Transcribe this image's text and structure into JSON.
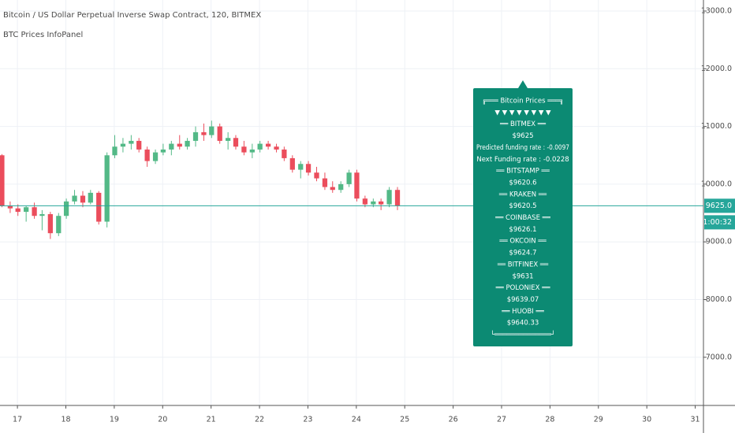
{
  "chart_data": {
    "type": "candlestick",
    "title": "Bitcoin / US Dollar Perpetual Inverse Swap Contract, 120, BITMEX",
    "subtitle": "BTC Prices InfoPanel",
    "up_color": "#53b987",
    "down_color": "#eb4d5c",
    "grid": true,
    "xlim": [
      16.64,
      31.17
    ],
    "xticks": [
      17,
      18,
      19,
      20,
      21,
      22,
      23,
      24,
      25,
      26,
      27,
      28,
      29,
      30,
      31
    ],
    "ylim": [
      6165,
      13191
    ],
    "yticks": [
      {
        "value": 7000,
        "label": "7000.0"
      },
      {
        "value": 8000,
        "label": "8000.0"
      },
      {
        "value": 9000,
        "label": "9000.0"
      },
      {
        "value": 10000,
        "label": "10000.0"
      },
      {
        "value": 11000,
        "label": "11000.0"
      },
      {
        "value": 12000,
        "label": "12000.0"
      },
      {
        "value": 13000,
        "label": "13000.0"
      }
    ],
    "x": [
      16.68,
      16.85,
      17.01,
      17.18,
      17.35,
      17.51,
      17.68,
      17.85,
      18.01,
      18.18,
      18.35,
      18.51,
      18.68,
      18.85,
      19.01,
      19.18,
      19.35,
      19.51,
      19.68,
      19.85,
      20.01,
      20.18,
      20.35,
      20.51,
      20.68,
      20.85,
      21.01,
      21.18,
      21.35,
      21.51,
      21.68,
      21.85,
      22.01,
      22.18,
      22.35,
      22.51,
      22.68,
      22.85,
      23.01,
      23.18,
      23.35,
      23.51,
      23.68,
      23.85,
      24.01,
      24.18,
      24.35,
      24.51,
      24.68,
      24.85
    ],
    "open": [
      10500,
      9620,
      9580,
      9520,
      9600,
      9450,
      9480,
      9150,
      9450,
      9700,
      9800,
      9680,
      9850,
      9350,
      10500,
      10650,
      10700,
      10750,
      10600,
      10400,
      10550,
      10600,
      10700,
      10650,
      10750,
      10900,
      10850,
      11000,
      10750,
      10800,
      10650,
      10550,
      10600,
      10700,
      10650,
      10600,
      10450,
      10250,
      10350,
      10200,
      10100,
      9950,
      9900,
      10000,
      10200,
      9750,
      9650,
      9700,
      9650,
      9900
    ],
    "high": [
      10520,
      9700,
      9650,
      9620,
      9680,
      9550,
      9520,
      9500,
      9750,
      9900,
      9880,
      9900,
      9880,
      10550,
      10850,
      10800,
      10850,
      10800,
      10650,
      10600,
      10700,
      10750,
      10850,
      10800,
      11000,
      11050,
      11100,
      11050,
      10900,
      10850,
      10750,
      10700,
      10750,
      10750,
      10700,
      10650,
      10500,
      10400,
      10400,
      10300,
      10200,
      10050,
      10050,
      10250,
      10250,
      9800,
      9750,
      9750,
      9950,
      9950
    ],
    "low": [
      9600,
      9500,
      9450,
      9350,
      9400,
      9200,
      9050,
      9100,
      9400,
      9650,
      9600,
      9650,
      9300,
      9250,
      10450,
      10550,
      10600,
      10550,
      10300,
      10350,
      10500,
      10500,
      10600,
      10600,
      10650,
      10750,
      10800,
      10700,
      10600,
      10600,
      10500,
      10450,
      10550,
      10600,
      10550,
      10400,
      10200,
      10100,
      10150,
      10050,
      9900,
      9850,
      9850,
      9950,
      9700,
      9600,
      9600,
      9550,
      9600,
      9550
    ],
    "close": [
      9620,
      9580,
      9520,
      9600,
      9450,
      9480,
      9150,
      9450,
      9700,
      9800,
      9680,
      9850,
      9350,
      10500,
      10650,
      10700,
      10750,
      10600,
      10400,
      10550,
      10600,
      10700,
      10650,
      10750,
      10900,
      10850,
      11000,
      10750,
      10800,
      10650,
      10550,
      10600,
      10700,
      10650,
      10600,
      10450,
      10250,
      10350,
      10200,
      10100,
      9950,
      9900,
      10000,
      10200,
      9750,
      9650,
      9700,
      9650,
      9900,
      9625
    ],
    "price_line": {
      "value": 9625,
      "label": "9625.0",
      "color": "#26a69a"
    },
    "countdown": "01:00:32",
    "info_panel": {
      "color": "#0c8a73",
      "lines": [
        "╔═══ Bitcoin Prices ═══╗",
        "▼ ▼ ▼ ▼ ▼ ▼ ▼ ▼",
        "══ BITMEX ══",
        "$9625",
        "Predicted funding rate : -0.0097",
        "Next Funding rate : -0.0228",
        "══ BITSTAMP ══",
        "$9620.6",
        "══ KRAKEN ══",
        "$9620.5",
        "══ COINBASE ══",
        "$9626.1",
        "══ OKCOIN ══",
        "$9624.7",
        "══ BITFINEX ══",
        "$9631",
        "══ POLONIEX ══",
        "$9639.07",
        "══ HUOBI ══",
        "$9640.33",
        "└══════════════┘"
      ]
    }
  }
}
